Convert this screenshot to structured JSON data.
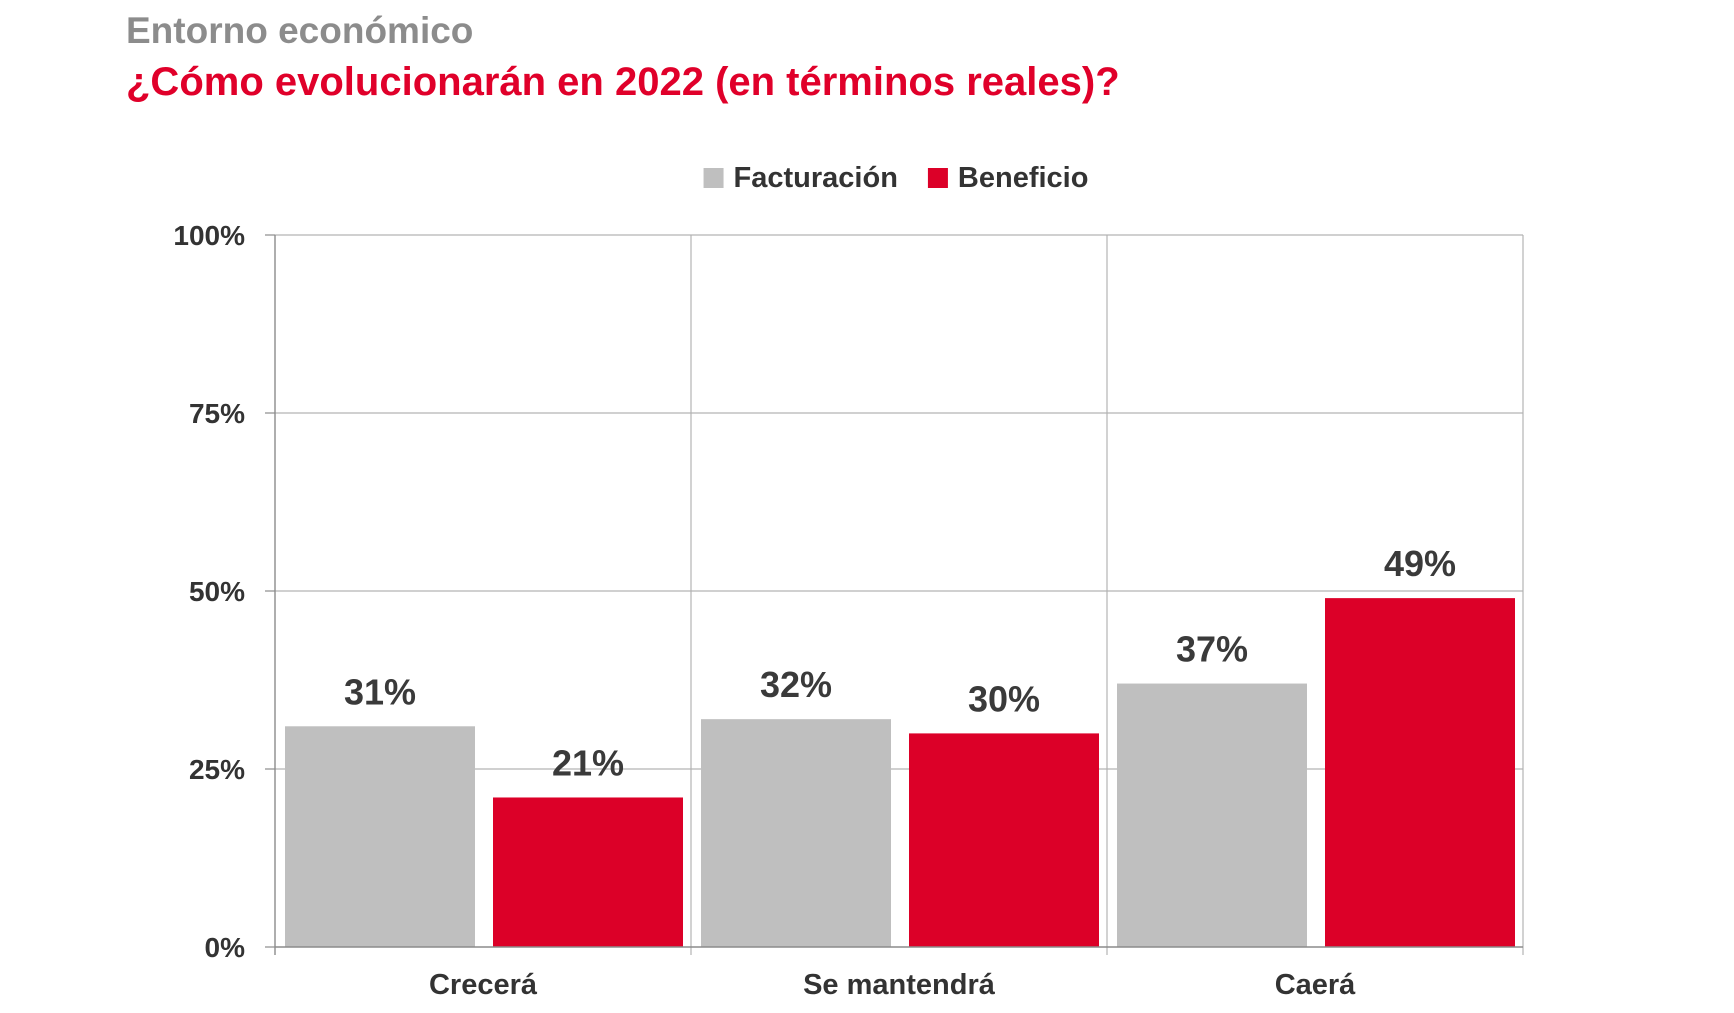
{
  "header": {
    "kicker": "Entorno económico",
    "title": "¿Cómo evolucionarán en 2022 (en términos reales)?"
  },
  "chart_data": {
    "type": "bar",
    "categories": [
      "Crecerá",
      "Se mantendrá",
      "Caerá"
    ],
    "series": [
      {
        "name": "Facturación",
        "values": [
          31,
          32,
          37
        ],
        "labels": [
          "31%",
          "32%",
          "37%"
        ],
        "color": "#bfbfbf"
      },
      {
        "name": "Beneficio",
        "values": [
          21,
          30,
          49
        ],
        "labels": [
          "21%",
          "30%",
          "49%"
        ],
        "color": "#dc0028"
      }
    ],
    "ylim": [
      0,
      100
    ],
    "yticks": [
      0,
      25,
      50,
      75,
      100
    ],
    "ytick_labels": [
      "0%",
      "25%",
      "50%",
      "75%",
      "100%"
    ],
    "grid": true,
    "legend_position": "top-center",
    "title": "¿Cómo evolucionarán en 2022 (en términos reales)?",
    "xlabel": "",
    "ylabel": ""
  },
  "colors": {
    "grid": "#b3b3b3",
    "axis": "#8c8c8c",
    "kicker": "#8c8c8c",
    "accent": "#e0002a"
  }
}
